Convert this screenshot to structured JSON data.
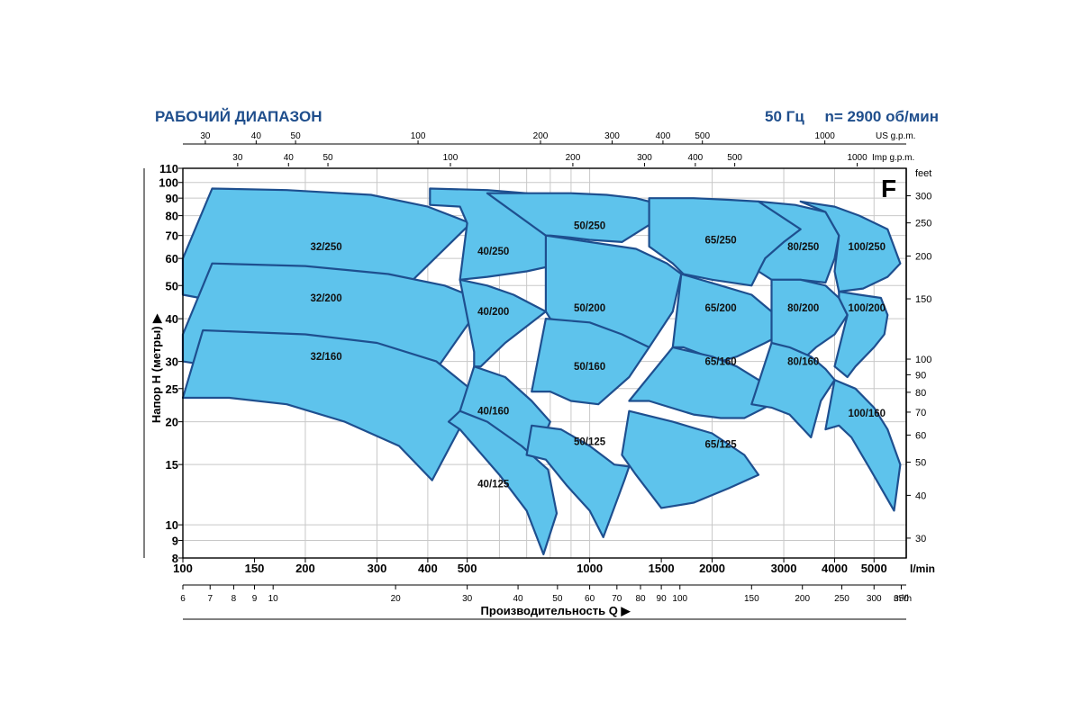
{
  "header": {
    "title": "РАБОЧИЙ ДИАПАЗОН",
    "frequency": "50 Гц",
    "speed": "n= 2900 об/мин"
  },
  "colors": {
    "fill": "#5ec3ec",
    "stroke": "#1e4f8f",
    "grid": "#c8c8c8",
    "title": "#1f4e8c",
    "text": "#111111"
  },
  "chart_data": {
    "type": "area",
    "x_scale": "log",
    "y_scale": "log",
    "xlim": [
      100,
      6000
    ],
    "ylim": [
      8,
      110
    ],
    "grid": true,
    "corner_label": "F",
    "ylabel": "Напор H (метры)",
    "xlabel": "Производительность Q",
    "y_ticks_left": [
      8,
      9,
      10,
      15,
      20,
      25,
      30,
      40,
      50,
      60,
      70,
      80,
      90,
      100,
      110
    ],
    "y_right_unit": "feet",
    "y_ticks_right": [
      30,
      40,
      50,
      60,
      70,
      80,
      90,
      100,
      150,
      200,
      250,
      300
    ],
    "x_main_unit": "l/min",
    "x_main_ticks": [
      100,
      150,
      200,
      300,
      400,
      500,
      1000,
      1500,
      2000,
      3000,
      4000,
      5000
    ],
    "x_m3h_unit": "m³/h",
    "x_m3h_ticks": [
      6,
      7,
      8,
      9,
      10,
      20,
      30,
      40,
      50,
      60,
      70,
      80,
      90,
      100,
      150,
      200,
      250,
      300,
      350
    ],
    "x_us_unit": "US g.p.m.",
    "x_us_ticks": [
      30,
      40,
      50,
      100,
      200,
      300,
      400,
      500,
      1000
    ],
    "x_imp_unit": "Imp g.p.m.",
    "x_imp_ticks": [
      30,
      40,
      50,
      100,
      200,
      300,
      400,
      500,
      1000
    ],
    "series": [
      {
        "name": "32/250",
        "label_at": [
          225,
          65
        ],
        "outline": [
          [
            100,
            60
          ],
          [
            118,
            96
          ],
          [
            180,
            95
          ],
          [
            290,
            92
          ],
          [
            400,
            85
          ],
          [
            510,
            76
          ],
          [
            300,
            41
          ],
          [
            215,
            42
          ],
          [
            150,
            43
          ],
          [
            110,
            46
          ],
          [
            100,
            47
          ]
        ]
      },
      {
        "name": "32/200",
        "label_at": [
          225,
          46
        ],
        "outline": [
          [
            100,
            36
          ],
          [
            118,
            58
          ],
          [
            200,
            57
          ],
          [
            320,
            54
          ],
          [
            440,
            50
          ],
          [
            550,
            45
          ],
          [
            380,
            24
          ],
          [
            260,
            26
          ],
          [
            180,
            27
          ],
          [
            120,
            29
          ],
          [
            100,
            30
          ]
        ]
      },
      {
        "name": "32/160",
        "label_at": [
          225,
          31
        ],
        "outline": [
          [
            100,
            23.5
          ],
          [
            112,
            37
          ],
          [
            200,
            36
          ],
          [
            300,
            34
          ],
          [
            420,
            30
          ],
          [
            530,
            24
          ],
          [
            410,
            13.5
          ],
          [
            340,
            17
          ],
          [
            250,
            20
          ],
          [
            180,
            22.5
          ],
          [
            130,
            23.5
          ],
          [
            100,
            23.5
          ]
        ]
      },
      {
        "name": "40/250",
        "label_at": [
          580,
          63
        ],
        "outline": [
          [
            405,
            96
          ],
          [
            560,
            95
          ],
          [
            700,
            93
          ],
          [
            800,
            90
          ],
          [
            900,
            86
          ],
          [
            960,
            80
          ],
          [
            860,
            58
          ],
          [
            700,
            55
          ],
          [
            560,
            53
          ],
          [
            480,
            52
          ],
          [
            500,
            76
          ],
          [
            480,
            85
          ],
          [
            405,
            86
          ]
        ]
      },
      {
        "name": "40/200",
        "label_at": [
          580,
          42
        ],
        "outline": [
          [
            480,
            52
          ],
          [
            560,
            50
          ],
          [
            650,
            47
          ],
          [
            780,
            42
          ],
          [
            720,
            39
          ],
          [
            620,
            34
          ],
          [
            540,
            29
          ],
          [
            520,
            29
          ],
          [
            520,
            32
          ],
          [
            480,
            52
          ]
        ]
      },
      {
        "name": "40/160",
        "label_at": [
          580,
          21.5
        ],
        "outline": [
          [
            520,
            29
          ],
          [
            620,
            27
          ],
          [
            720,
            23
          ],
          [
            800,
            20
          ],
          [
            720,
            15
          ],
          [
            650,
            15.5
          ],
          [
            560,
            17.5
          ],
          [
            480,
            21.5
          ],
          [
            520,
            29
          ]
        ]
      },
      {
        "name": "40/125",
        "label_at": [
          580,
          13.2
        ],
        "outline": [
          [
            480,
            21.5
          ],
          [
            560,
            20
          ],
          [
            680,
            17
          ],
          [
            790,
            14.5
          ],
          [
            830,
            10.8
          ],
          [
            770,
            8.2
          ],
          [
            700,
            11
          ],
          [
            600,
            14
          ],
          [
            480,
            19
          ],
          [
            450,
            20
          ],
          [
            480,
            21.5
          ]
        ]
      },
      {
        "name": "50/250",
        "label_at": [
          1000,
          75
        ],
        "outline": [
          [
            560,
            93
          ],
          [
            900,
            93
          ],
          [
            1100,
            92
          ],
          [
            1300,
            90
          ],
          [
            1400,
            88
          ],
          [
            1600,
            83
          ],
          [
            1200,
            67
          ],
          [
            1000,
            68
          ],
          [
            900,
            69
          ],
          [
            800,
            70
          ],
          [
            780,
            70
          ]
        ]
      },
      {
        "name": "50/200",
        "label_at": [
          1000,
          43
        ],
        "outline": [
          [
            780,
            70
          ],
          [
            1000,
            67
          ],
          [
            1300,
            64
          ],
          [
            1550,
            58
          ],
          [
            1680,
            54
          ],
          [
            1600,
            42
          ],
          [
            1400,
            33
          ],
          [
            1200,
            35
          ],
          [
            1000,
            37
          ],
          [
            800,
            40
          ],
          [
            780,
            42
          ]
        ]
      },
      {
        "name": "50/160",
        "label_at": [
          1000,
          29
        ],
        "outline": [
          [
            780,
            40
          ],
          [
            1000,
            39
          ],
          [
            1200,
            36
          ],
          [
            1400,
            33
          ],
          [
            1250,
            27
          ],
          [
            1050,
            22.5
          ],
          [
            900,
            23
          ],
          [
            800,
            24.5
          ],
          [
            720,
            24.5
          ]
        ]
      },
      {
        "name": "50/125",
        "label_at": [
          1000,
          17.5
        ],
        "outline": [
          [
            720,
            19.5
          ],
          [
            850,
            19
          ],
          [
            1000,
            17
          ],
          [
            1150,
            15
          ],
          [
            1250,
            14.8
          ],
          [
            1220,
            13.6
          ],
          [
            1080,
            9.2
          ],
          [
            1000,
            11
          ],
          [
            880,
            13
          ],
          [
            780,
            15.5
          ],
          [
            700,
            16
          ],
          [
            720,
            19.5
          ]
        ]
      },
      {
        "name": "65/250",
        "label_at": [
          2100,
          68
        ],
        "outline": [
          [
            1400,
            90
          ],
          [
            1800,
            90
          ],
          [
            2200,
            89
          ],
          [
            2600,
            88
          ],
          [
            3000,
            85
          ],
          [
            3300,
            82
          ],
          [
            3700,
            77
          ],
          [
            3000,
            67
          ],
          [
            2700,
            60
          ],
          [
            2500,
            50
          ],
          [
            2000,
            52
          ],
          [
            1700,
            54
          ],
          [
            1600,
            58
          ],
          [
            1400,
            65
          ]
        ]
      },
      {
        "name": "65/200",
        "label_at": [
          2100,
          43
        ],
        "outline": [
          [
            1680,
            54
          ],
          [
            2100,
            50
          ],
          [
            2500,
            47
          ],
          [
            2800,
            42
          ],
          [
            3100,
            37
          ],
          [
            2700,
            34
          ],
          [
            2300,
            31
          ],
          [
            2100,
            30
          ],
          [
            1700,
            33
          ],
          [
            1600,
            33
          ],
          [
            1680,
            54
          ]
        ]
      },
      {
        "name": "65/160",
        "label_at": [
          2100,
          30
        ],
        "outline": [
          [
            1600,
            33
          ],
          [
            2000,
            31
          ],
          [
            2300,
            29
          ],
          [
            2600,
            26.5
          ],
          [
            2800,
            22.5
          ],
          [
            2400,
            20.5
          ],
          [
            2100,
            20.5
          ],
          [
            1800,
            21
          ],
          [
            1400,
            23
          ],
          [
            1250,
            23
          ]
        ]
      },
      {
        "name": "65/125",
        "label_at": [
          2100,
          17.2
        ],
        "outline": [
          [
            1250,
            21.5
          ],
          [
            1600,
            20
          ],
          [
            2000,
            18.5
          ],
          [
            2400,
            16
          ],
          [
            2600,
            14
          ],
          [
            2200,
            12.8
          ],
          [
            1800,
            11.6
          ],
          [
            1500,
            11.2
          ],
          [
            1300,
            14
          ],
          [
            1200,
            16
          ],
          [
            1250,
            21.5
          ]
        ]
      },
      {
        "name": "80/250",
        "label_at": [
          3350,
          65
        ],
        "outline": [
          [
            2600,
            88
          ],
          [
            3200,
            86
          ],
          [
            3800,
            82
          ],
          [
            4100,
            70
          ],
          [
            4000,
            60
          ],
          [
            3800,
            51
          ],
          [
            3300,
            52
          ],
          [
            2800,
            52
          ],
          [
            2600,
            55
          ],
          [
            2700,
            60
          ],
          [
            3000,
            67
          ],
          [
            3300,
            73
          ],
          [
            2600,
            88
          ]
        ]
      },
      {
        "name": "80/200",
        "label_at": [
          3350,
          43
        ],
        "outline": [
          [
            2800,
            52
          ],
          [
            3300,
            52
          ],
          [
            3800,
            50
          ],
          [
            4100,
            46
          ],
          [
            4300,
            41
          ],
          [
            4000,
            36
          ],
          [
            3600,
            33
          ],
          [
            3200,
            29
          ],
          [
            3000,
            31
          ],
          [
            2800,
            34
          ]
        ]
      },
      {
        "name": "80/160",
        "label_at": [
          3350,
          30
        ],
        "outline": [
          [
            2800,
            34
          ],
          [
            3100,
            33
          ],
          [
            3500,
            31
          ],
          [
            3800,
            28.5
          ],
          [
            4000,
            26.5
          ],
          [
            3700,
            23
          ],
          [
            3500,
            18
          ],
          [
            3100,
            21
          ],
          [
            2800,
            22
          ],
          [
            2500,
            22.5
          ],
          [
            2800,
            34
          ]
        ]
      },
      {
        "name": "100/250",
        "label_at": [
          4800,
          65
        ],
        "outline": [
          [
            3300,
            88
          ],
          [
            4000,
            85
          ],
          [
            4600,
            80
          ],
          [
            5400,
            73
          ],
          [
            5800,
            58
          ],
          [
            5400,
            53
          ],
          [
            4700,
            49
          ],
          [
            4100,
            48
          ],
          [
            4000,
            55
          ],
          [
            4100,
            70
          ],
          [
            3800,
            82
          ]
        ]
      },
      {
        "name": "100/200",
        "label_at": [
          4800,
          43
        ],
        "outline": [
          [
            4100,
            48
          ],
          [
            4600,
            47
          ],
          [
            5200,
            46
          ],
          [
            5400,
            41
          ],
          [
            5300,
            36
          ],
          [
            5000,
            33
          ],
          [
            4500,
            29
          ],
          [
            4300,
            27
          ],
          [
            4000,
            29
          ],
          [
            4300,
            41
          ],
          [
            4100,
            46
          ]
        ]
      },
      {
        "name": "100/160",
        "label_at": [
          4800,
          21.2
        ],
        "outline": [
          [
            4000,
            26.5
          ],
          [
            4500,
            25
          ],
          [
            5000,
            22
          ],
          [
            5400,
            19
          ],
          [
            5800,
            15
          ],
          [
            5600,
            11
          ],
          [
            4900,
            14.5
          ],
          [
            4400,
            18
          ],
          [
            4100,
            19.5
          ],
          [
            3800,
            19
          ],
          [
            4000,
            26.5
          ]
        ]
      }
    ]
  }
}
